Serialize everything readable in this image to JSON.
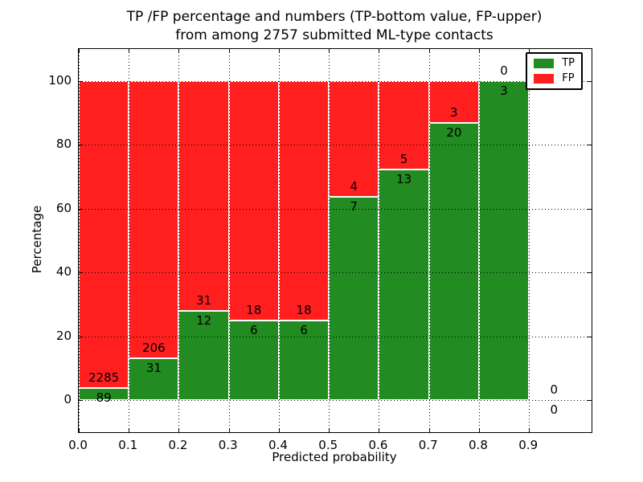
{
  "figure": {
    "title_line1": "TP /FP percentage and numbers (TP-bottom value, FP-upper)",
    "title_line2": "from among 2757 submitted ML-type contacts"
  },
  "chart_data": {
    "type": "bar",
    "subtype": "stacked-percentage-histogram",
    "title": "TP /FP percentage and numbers (TP-bottom value, FP-upper)\nfrom among 2757 submitted ML-type contacts",
    "xlabel": "Predicted probability",
    "ylabel": "Percentage",
    "xlim": [
      0,
      1.025
    ],
    "ylim": [
      -10,
      110
    ],
    "xticks": [
      "0.0",
      "0.1",
      "0.2",
      "0.3",
      "0.4",
      "0.5",
      "0.6",
      "0.7",
      "0.8",
      "0.9"
    ],
    "yticks": [
      "0",
      "20",
      "40",
      "60",
      "80",
      "100"
    ],
    "grid": "dotted black, both axes",
    "bar_width": 0.1,
    "bins_start": [
      0.0,
      0.1,
      0.2,
      0.3,
      0.4,
      0.5,
      0.6,
      0.7,
      0.8,
      0.9
    ],
    "categories": [
      "0.0-0.1",
      "0.1-0.2",
      "0.2-0.3",
      "0.3-0.4",
      "0.4-0.5",
      "0.5-0.6",
      "0.6-0.7",
      "0.7-0.8",
      "0.8-0.9",
      "0.9-1.0"
    ],
    "series": [
      {
        "name": "TP",
        "color": "#228b22",
        "counts": [
          89,
          31,
          12,
          6,
          6,
          7,
          13,
          20,
          3,
          0
        ]
      },
      {
        "name": "FP",
        "color": "#ff1f1f",
        "counts": [
          2285,
          206,
          31,
          18,
          18,
          4,
          5,
          3,
          0,
          0
        ]
      }
    ],
    "tp_percent_of_bin": [
      3.75,
      13.08,
      27.91,
      25.0,
      25.0,
      63.64,
      72.22,
      86.96,
      100.0,
      0.0
    ],
    "total_contacts": 2757,
    "legend": {
      "position": "upper right",
      "entries": [
        {
          "label": "TP",
          "color": "#228b22"
        },
        {
          "label": "FP",
          "color": "#ff1f1f"
        }
      ]
    }
  }
}
